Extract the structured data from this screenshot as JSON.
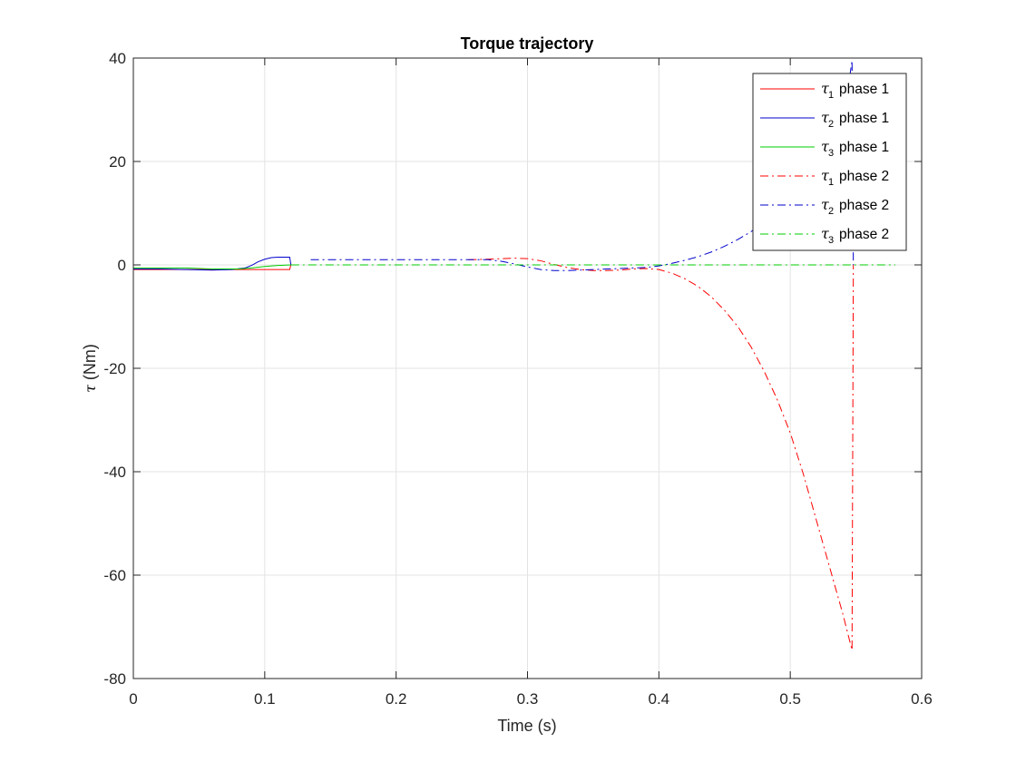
{
  "chart_data": {
    "type": "line",
    "title": "Torque trajectory",
    "xlabel": "Time (s)",
    "ylabel_symbol": "τ",
    "ylabel_unit": "(Nm)",
    "xlim": [
      0,
      0.6
    ],
    "ylim": [
      -80,
      40
    ],
    "xticks": [
      0,
      0.1,
      0.2,
      0.3,
      0.4,
      0.5,
      0.6
    ],
    "xtick_labels": [
      "0",
      "0.1",
      "0.2",
      "0.3",
      "0.4",
      "0.5",
      "0.6"
    ],
    "yticks": [
      -80,
      -60,
      -40,
      -20,
      0,
      20,
      40
    ],
    "ytick_labels": [
      "-80",
      "-60",
      "-40",
      "-20",
      "0",
      "20",
      "40"
    ],
    "grid": true,
    "legend_position": "top-right",
    "series": [
      {
        "symbol": "τ",
        "subscript": "1",
        "label": "phase 1",
        "color": "#ff0000",
        "style": "solid",
        "x": [
          0,
          0.02,
          0.04,
          0.06,
          0.08,
          0.09,
          0.1,
          0.11,
          0.119,
          0.12
        ],
        "y": [
          -0.9,
          -0.9,
          -0.9,
          -0.9,
          -0.9,
          -0.9,
          -0.9,
          -0.9,
          -0.9,
          0.1
        ]
      },
      {
        "symbol": "τ",
        "subscript": "2",
        "label": "phase 1",
        "color": "#0000cc",
        "style": "solid",
        "x": [
          0,
          0.02,
          0.04,
          0.06,
          0.075,
          0.085,
          0.09,
          0.095,
          0.1,
          0.105,
          0.11,
          0.115,
          0.119,
          0.12
        ],
        "y": [
          -0.8,
          -0.8,
          -0.9,
          -1.0,
          -0.9,
          -0.6,
          -0.1,
          0.6,
          1.1,
          1.4,
          1.5,
          1.5,
          1.5,
          -0.1
        ]
      },
      {
        "symbol": "τ",
        "subscript": "3",
        "label": "phase 1",
        "color": "#00cc00",
        "style": "solid",
        "x": [
          0,
          0.02,
          0.04,
          0.06,
          0.08,
          0.09,
          0.1,
          0.11,
          0.12
        ],
        "y": [
          -0.6,
          -0.6,
          -0.6,
          -0.8,
          -0.8,
          -0.6,
          -0.3,
          -0.1,
          0.0
        ]
      },
      {
        "symbol": "τ",
        "subscript": "1",
        "label": "phase 2",
        "color": "#ff0000",
        "style": "dashdot",
        "x": [
          0.255,
          0.27,
          0.28,
          0.29,
          0.3,
          0.31,
          0.32,
          0.33,
          0.34,
          0.35,
          0.36,
          0.37,
          0.38,
          0.39,
          0.4,
          0.41,
          0.42,
          0.43,
          0.44,
          0.45,
          0.46,
          0.47,
          0.48,
          0.49,
          0.5,
          0.51,
          0.52,
          0.53,
          0.54,
          0.545,
          0.547,
          0.548
        ],
        "y": [
          1.0,
          1.1,
          1.2,
          1.3,
          1.2,
          0.8,
          0.1,
          -0.5,
          -0.9,
          -1.1,
          -1.1,
          -1.0,
          -0.8,
          -0.7,
          -0.9,
          -1.6,
          -2.7,
          -4.2,
          -6.2,
          -8.8,
          -11.9,
          -15.8,
          -20.5,
          -26.0,
          -32.5,
          -40.5,
          -49.5,
          -58.5,
          -67.5,
          -72.5,
          -74.5,
          0.0
        ]
      },
      {
        "symbol": "τ",
        "subscript": "2",
        "label": "phase 2",
        "color": "#0000cc",
        "style": "dashdot",
        "x": [
          0.135,
          0.15,
          0.2,
          0.25,
          0.27,
          0.28,
          0.29,
          0.3,
          0.31,
          0.32,
          0.33,
          0.34,
          0.35,
          0.36,
          0.37,
          0.38,
          0.39,
          0.4,
          0.41,
          0.42,
          0.43,
          0.44,
          0.45,
          0.46,
          0.47,
          0.48,
          0.49,
          0.5,
          0.51,
          0.52,
          0.53,
          0.54,
          0.545,
          0.547,
          0.548
        ],
        "y": [
          1.0,
          1.0,
          1.0,
          1.0,
          1.0,
          0.7,
          0.2,
          -0.4,
          -0.9,
          -1.1,
          -1.1,
          -1.0,
          -0.9,
          -0.8,
          -0.7,
          -0.6,
          -0.5,
          -0.2,
          0.3,
          0.9,
          1.6,
          2.5,
          3.6,
          4.9,
          6.4,
          8.2,
          10.3,
          12.8,
          16.0,
          20.0,
          25.0,
          31.5,
          36.0,
          39.5,
          0.0
        ]
      },
      {
        "symbol": "τ",
        "subscript": "3",
        "label": "phase 2",
        "color": "#00cc00",
        "style": "dashdot",
        "x": [
          0.12,
          0.2,
          0.3,
          0.4,
          0.5,
          0.58
        ],
        "y": [
          0,
          0,
          0,
          0,
          0,
          0
        ]
      }
    ]
  }
}
